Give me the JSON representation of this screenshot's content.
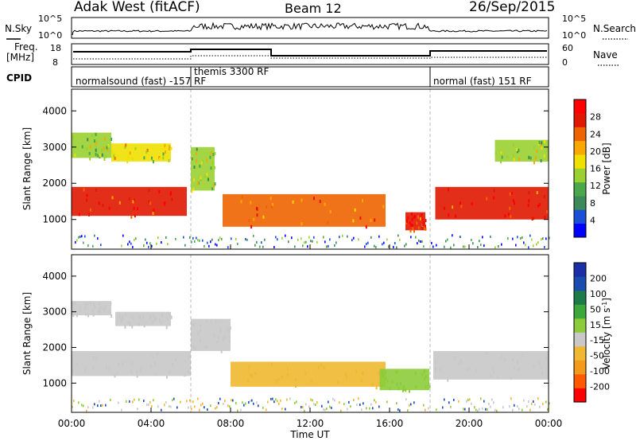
{
  "header": {
    "site": "Adak West (fitACF)",
    "beam": "Beam 12",
    "date": "26/Sep/2015"
  },
  "strips": {
    "nsky_label": "N.Sky",
    "nsearch_label": "N.Search",
    "freq_label_1": "Freq.",
    "freq_label_2": "[MHz]",
    "nave_label": "Nave",
    "cpid_label": "CPID",
    "nsky_ticks": [
      "10^5",
      "10^0"
    ],
    "nsearch_ticks": [
      "10^5",
      "10^0"
    ],
    "freq_ticks": [
      "18",
      "8"
    ],
    "nave_ticks": [
      "60",
      "0"
    ]
  },
  "cpid_segments": [
    {
      "label": "normalsound (fast) -157 RF",
      "start_h": 0,
      "end_h": 6
    },
    {
      "label": "themis 3300 RF",
      "start_h": 6,
      "end_h": 18
    },
    {
      "label": "normal (fast) 151 RF",
      "start_h": 18,
      "end_h": 24
    }
  ],
  "colors": {
    "power": [
      "#0000ff",
      "#1a4fd6",
      "#3c8a5a",
      "#4aa84a",
      "#9ad030",
      "#f0e000",
      "#f8a800",
      "#f06400",
      "#e01800",
      "#ff0000"
    ],
    "velocity": [
      "#ff0000",
      "#ff5a00",
      "#f39a1a",
      "#f0b830",
      "#c8c8c8",
      "#8ccc3a",
      "#3ca83a",
      "#1f7a4a",
      "#1a4cb0",
      "#1a2ea8"
    ],
    "grey": "#c8c8c8"
  },
  "chart_data": [
    {
      "type": "heatmap",
      "name": "power",
      "ylabel": "Slant Range [km]",
      "colorbar_label": "Power [dB]",
      "colorbar_ticks": [
        "4",
        "8",
        "12",
        "16",
        "20",
        "24",
        "28"
      ],
      "ylim": [
        180,
        4600
      ],
      "y_ticks": [
        "1000",
        "2000",
        "3000",
        "4000"
      ],
      "regions": [
        {
          "t0": 0.0,
          "t1": 5.8,
          "r0": 1100,
          "r1": 1900,
          "level": 0.85
        },
        {
          "t0": 0.0,
          "t1": 2.0,
          "r0": 2700,
          "r1": 3400,
          "level": 0.45
        },
        {
          "t0": 2.0,
          "t1": 5.0,
          "r0": 2600,
          "r1": 3100,
          "level": 0.55
        },
        {
          "t0": 6.0,
          "t1": 7.2,
          "r0": 1800,
          "r1": 3000,
          "level": 0.45
        },
        {
          "t0": 7.6,
          "t1": 15.8,
          "r0": 800,
          "r1": 1700,
          "level": 0.75
        },
        {
          "t0": 16.8,
          "t1": 17.8,
          "r0": 700,
          "r1": 1200,
          "level": 0.85
        },
        {
          "t0": 18.3,
          "t1": 24.0,
          "r0": 1000,
          "r1": 1900,
          "level": 0.85
        },
        {
          "t0": 21.3,
          "t1": 24.0,
          "r0": 2600,
          "r1": 3200,
          "level": 0.45
        }
      ]
    },
    {
      "type": "heatmap",
      "name": "velocity",
      "ylabel": "Slant Range [km]",
      "colorbar_label": "Velocity [m s^-1]",
      "colorbar_ticks": [
        "-200",
        "-100",
        "-50",
        "-15",
        "15",
        "50",
        "100",
        "200"
      ],
      "ylim": [
        180,
        4600
      ],
      "y_ticks": [
        "1000",
        "2000",
        "3000",
        "4000"
      ],
      "xlabel": "Time UT",
      "x_ticks": [
        "00:00",
        "04:00",
        "08:00",
        "12:00",
        "16:00",
        "20:00",
        "00:00"
      ],
      "regions": [
        {
          "t0": 0.0,
          "t1": 6.0,
          "r0": 1200,
          "r1": 1900,
          "value": 0
        },
        {
          "t0": 0.0,
          "t1": 2.0,
          "r0": 2900,
          "r1": 3300,
          "value": 0
        },
        {
          "t0": 2.2,
          "t1": 5.0,
          "r0": 2600,
          "r1": 3000,
          "value": 0
        },
        {
          "t0": 6.0,
          "t1": 8.0,
          "r0": 1900,
          "r1": 2800,
          "value": 0
        },
        {
          "t0": 8.0,
          "t1": 15.8,
          "r0": 900,
          "r1": 1600,
          "value": -30
        },
        {
          "t0": 15.5,
          "t1": 18.0,
          "r0": 800,
          "r1": 1400,
          "value": 40
        },
        {
          "t0": 18.2,
          "t1": 24.0,
          "r0": 1100,
          "r1": 1900,
          "value": 0
        }
      ]
    }
  ]
}
